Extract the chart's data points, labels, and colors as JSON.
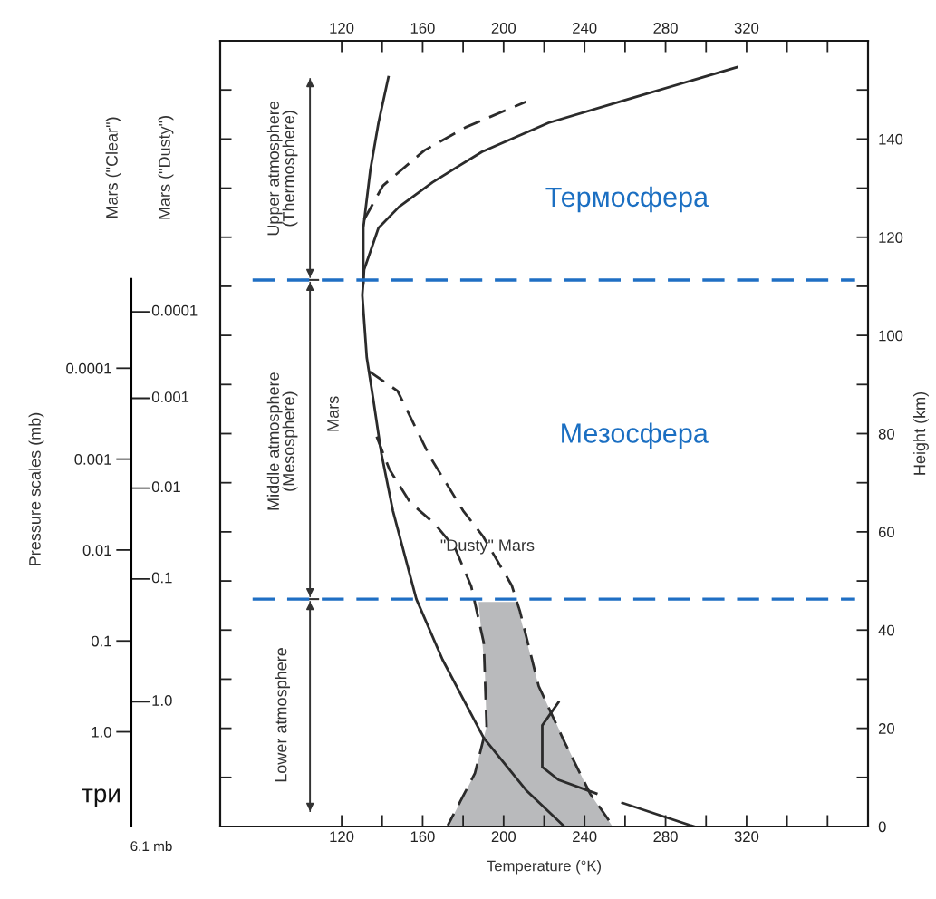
{
  "chart_data": {
    "type": "line",
    "xlabel": "Temperature (°K)",
    "ylabel": "Height (km)",
    "y2label": "Mars (\"Clear\")",
    "log": "y2",
    "xlim": [
      60,
      380
    ],
    "ylim": [
      0,
      160
    ],
    "xticks": [
      {
        "value": 120,
        "label": "120"
      },
      {
        "value": 140,
        "label": null
      },
      {
        "value": 160,
        "label": "160"
      },
      {
        "value": 180,
        "label": null
      },
      {
        "value": 200,
        "label": "200"
      },
      {
        "value": 220,
        "label": null
      },
      {
        "value": 240,
        "label": "240"
      },
      {
        "value": 260,
        "label": null
      },
      {
        "value": 280,
        "label": "280"
      },
      {
        "value": 300,
        "label": null
      },
      {
        "value": 320,
        "label": "320"
      },
      {
        "value": 340,
        "label": null
      },
      {
        "value": 360,
        "label": null
      }
    ],
    "x2lim": [
      60,
      380
    ],
    "x2ticks": [
      {
        "value": 120,
        "label": "120"
      },
      {
        "value": 140,
        "label": null
      },
      {
        "value": 160,
        "label": "160"
      },
      {
        "value": 180,
        "label": null
      },
      {
        "value": 200,
        "label": "200"
      },
      {
        "value": 220,
        "label": null
      },
      {
        "value": 240,
        "label": "240"
      },
      {
        "value": 260,
        "label": null
      },
      {
        "value": 280,
        "label": "280"
      },
      {
        "value": 300,
        "label": null
      },
      {
        "value": 320,
        "label": "320"
      },
      {
        "value": 340,
        "label": null
      },
      {
        "value": 360,
        "label": null
      }
    ],
    "yticks": [
      0,
      {
        "value": 10,
        "label": null
      },
      20,
      {
        "value": 30,
        "label": null
      },
      40,
      {
        "value": 50,
        "label": null
      },
      60,
      {
        "value": 70,
        "label": null
      },
      80,
      {
        "value": 90,
        "label": null
      },
      100,
      {
        "value": 110,
        "label": null
      },
      120,
      {
        "value": 130,
        "label": null
      },
      140,
      {
        "value": 150,
        "label": null
      }
    ],
    "y2lim": [
      11,
      2.5e-08
    ],
    "y2ticks": [
      {
        "value": 1,
        "label": "1.0"
      },
      0.1,
      0.01,
      0.001,
      0.0001
    ],
    "series": [
      {
        "type": "area",
        "color": "#b9babc",
        "x": [
          187.6,
          206.2,
          217.3,
          230.2,
          242.7,
          253.8,
          172.4,
          185.8,
          191.6,
          190.7
        ],
        "values": [
          45.7,
          45.7,
          28.6,
          17.3,
          6.7,
          0,
          0,
          10.8,
          20.4,
          32
        ]
      },
      {
        "name": "Mars",
        "color": "#2b2b2b",
        "line_style": "solid",
        "x": [
          230,
          211.1,
          190.2,
          169.8,
          156.9,
          145.3,
          139.6,
          135.6,
          132.4,
          130.2,
          130.7,
          130.7,
          134.2,
          138.2,
          143.1
        ],
        "values": [
          0,
          7.4,
          18,
          34,
          46.3,
          64.3,
          76,
          87,
          95.5,
          108.2,
          110.8,
          121.9,
          133.8,
          143.3,
          152.6
        ]
      },
      {
        "color": "#2b2b2b",
        "line_style": "solid",
        "x": [
          130.7,
          131.1,
          138.2,
          148.4,
          164.9,
          189.3,
          222.2,
          263.1,
          315.1
        ],
        "values": [
          110.8,
          113.4,
          121.9,
          126.2,
          131.2,
          137.4,
          143.3,
          148.3,
          154.6
        ]
      },
      {
        "color": "#2b2b2b",
        "line_style": "dashed",
        "x": [
          131.1,
          140.4,
          160.9,
          181.3,
          211.1
        ],
        "values": [
          123.6,
          130.5,
          137.7,
          142.4,
          147.6
        ]
      },
      {
        "color": "#2b2b2b",
        "line_style": "dashed",
        "x": [
          133.8,
          147.6,
          163.6,
          180,
          189.8,
          204,
          208,
          217.3,
          230.2,
          242.7,
          253.8
        ],
        "values": [
          92.6,
          88.7,
          75.3,
          64.3,
          59.1,
          49.1,
          43.9,
          28.6,
          17.1,
          6.7,
          0.2
        ]
      },
      {
        "name": "\"Dusty\" Mars",
        "color": "#2b2b2b",
        "line_style": "dashed",
        "x": [
          137.3,
          143.6,
          153.8,
          165.8,
          176,
          184,
          190.2,
          191.6,
          185.8,
          172.4
        ],
        "values": [
          79.4,
          72.7,
          66,
          61.7,
          56.7,
          48.9,
          37.4,
          20.4,
          10.8,
          0.2
        ]
      },
      {
        "color": "#2b2b2b",
        "line_style": "solid",
        "x": [
          227.1,
          219.1,
          219.1,
          227.1,
          245.8
        ],
        "values": [
          25.3,
          20.6,
          12.1,
          9.5,
          6.7
        ]
      },
      {
        "color": "#2b2b2b",
        "line_style": "solid",
        "x": [
          258.7,
          294
        ],
        "values": [
          4.8,
          0
        ]
      }
    ],
    "ref_lines": [
      {
        "axis": "y",
        "value": 111.3,
        "color": "#1f6fc4",
        "line_style": "dashed"
      },
      {
        "axis": "y",
        "value": 46.3,
        "color": "#1f6fc4",
        "line_style": "dashed"
      }
    ],
    "annotations": [
      "Upper atmosphere\n(Thermosphere)",
      "Middle atmosphere\n(Mesosphere)",
      "Lower atmosphere",
      "Термосфера",
      "Мезосфера",
      "6.1 mb",
      "три",
      "Pressure scales (mb)",
      "Mars (\"Dusty\")",
      "0.0001",
      "0.001",
      "0.01",
      "0.1",
      "1.0"
    ]
  }
}
